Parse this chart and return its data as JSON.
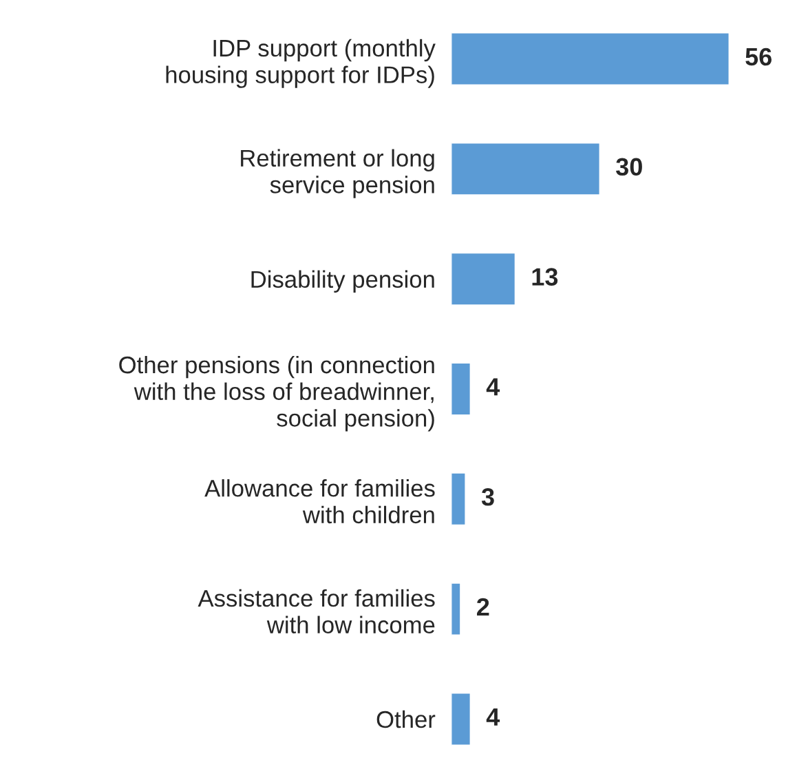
{
  "chart_data": {
    "type": "bar",
    "orientation": "horizontal",
    "categories": [
      "IDP support (monthly\nhousing support for IDPs)",
      "Retirement or long\nservice pension",
      "Disability pension",
      "Other pensions (in connection\nwith the loss of breadwinner,\nsocial pension)",
      "Allowance for families\nwith children",
      "Assistance for families\nwith low income",
      "Other"
    ],
    "values": [
      56,
      30,
      13,
      4,
      3,
      2,
      4
    ],
    "color": "#5b9bd5",
    "data_labels": true,
    "grid": false,
    "legend": false,
    "tick_labels": "y"
  }
}
